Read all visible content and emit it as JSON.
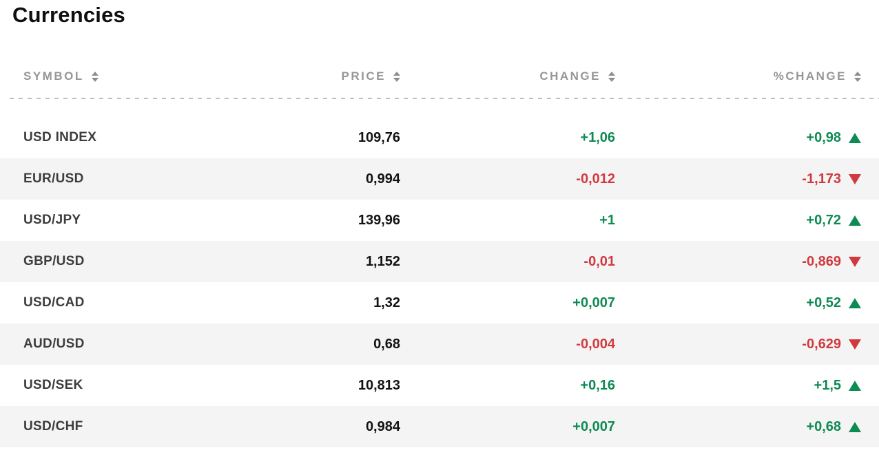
{
  "page": {
    "title": "Currencies"
  },
  "chart_data": {
    "type": "table",
    "title": "Currencies",
    "columns": [
      "SYMBOL",
      "PRICE",
      "CHANGE",
      "%CHANGE"
    ],
    "rows": [
      {
        "symbol": "USD INDEX",
        "price": "109,76",
        "change": "+1,06",
        "pct_change": "+0,98",
        "direction": "up"
      },
      {
        "symbol": "EUR/USD",
        "price": "0,994",
        "change": "-0,012",
        "pct_change": "-1,173",
        "direction": "down"
      },
      {
        "symbol": "USD/JPY",
        "price": "139,96",
        "change": "+1",
        "pct_change": "+0,72",
        "direction": "up"
      },
      {
        "symbol": "GBP/USD",
        "price": "1,152",
        "change": "-0,01",
        "pct_change": "-0,869",
        "direction": "down"
      },
      {
        "symbol": "USD/CAD",
        "price": "1,32",
        "change": "+0,007",
        "pct_change": "+0,52",
        "direction": "up"
      },
      {
        "symbol": "AUD/USD",
        "price": "0,68",
        "change": "-0,004",
        "pct_change": "-0,629",
        "direction": "down"
      },
      {
        "symbol": "USD/SEK",
        "price": "10,813",
        "change": "+0,16",
        "pct_change": "+1,5",
        "direction": "up"
      },
      {
        "symbol": "USD/CHF",
        "price": "0,984",
        "change": "+0,007",
        "pct_change": "+0,68",
        "direction": "up"
      }
    ]
  },
  "icons": {
    "sort": "sort-carets-icon",
    "trend_up": "triangle-up-icon",
    "trend_down": "triangle-down-icon"
  },
  "colors": {
    "positive": "#0e8a53",
    "negative": "#d03a3f",
    "row_stripe": "#f4f4f4",
    "header_text": "#969696"
  }
}
